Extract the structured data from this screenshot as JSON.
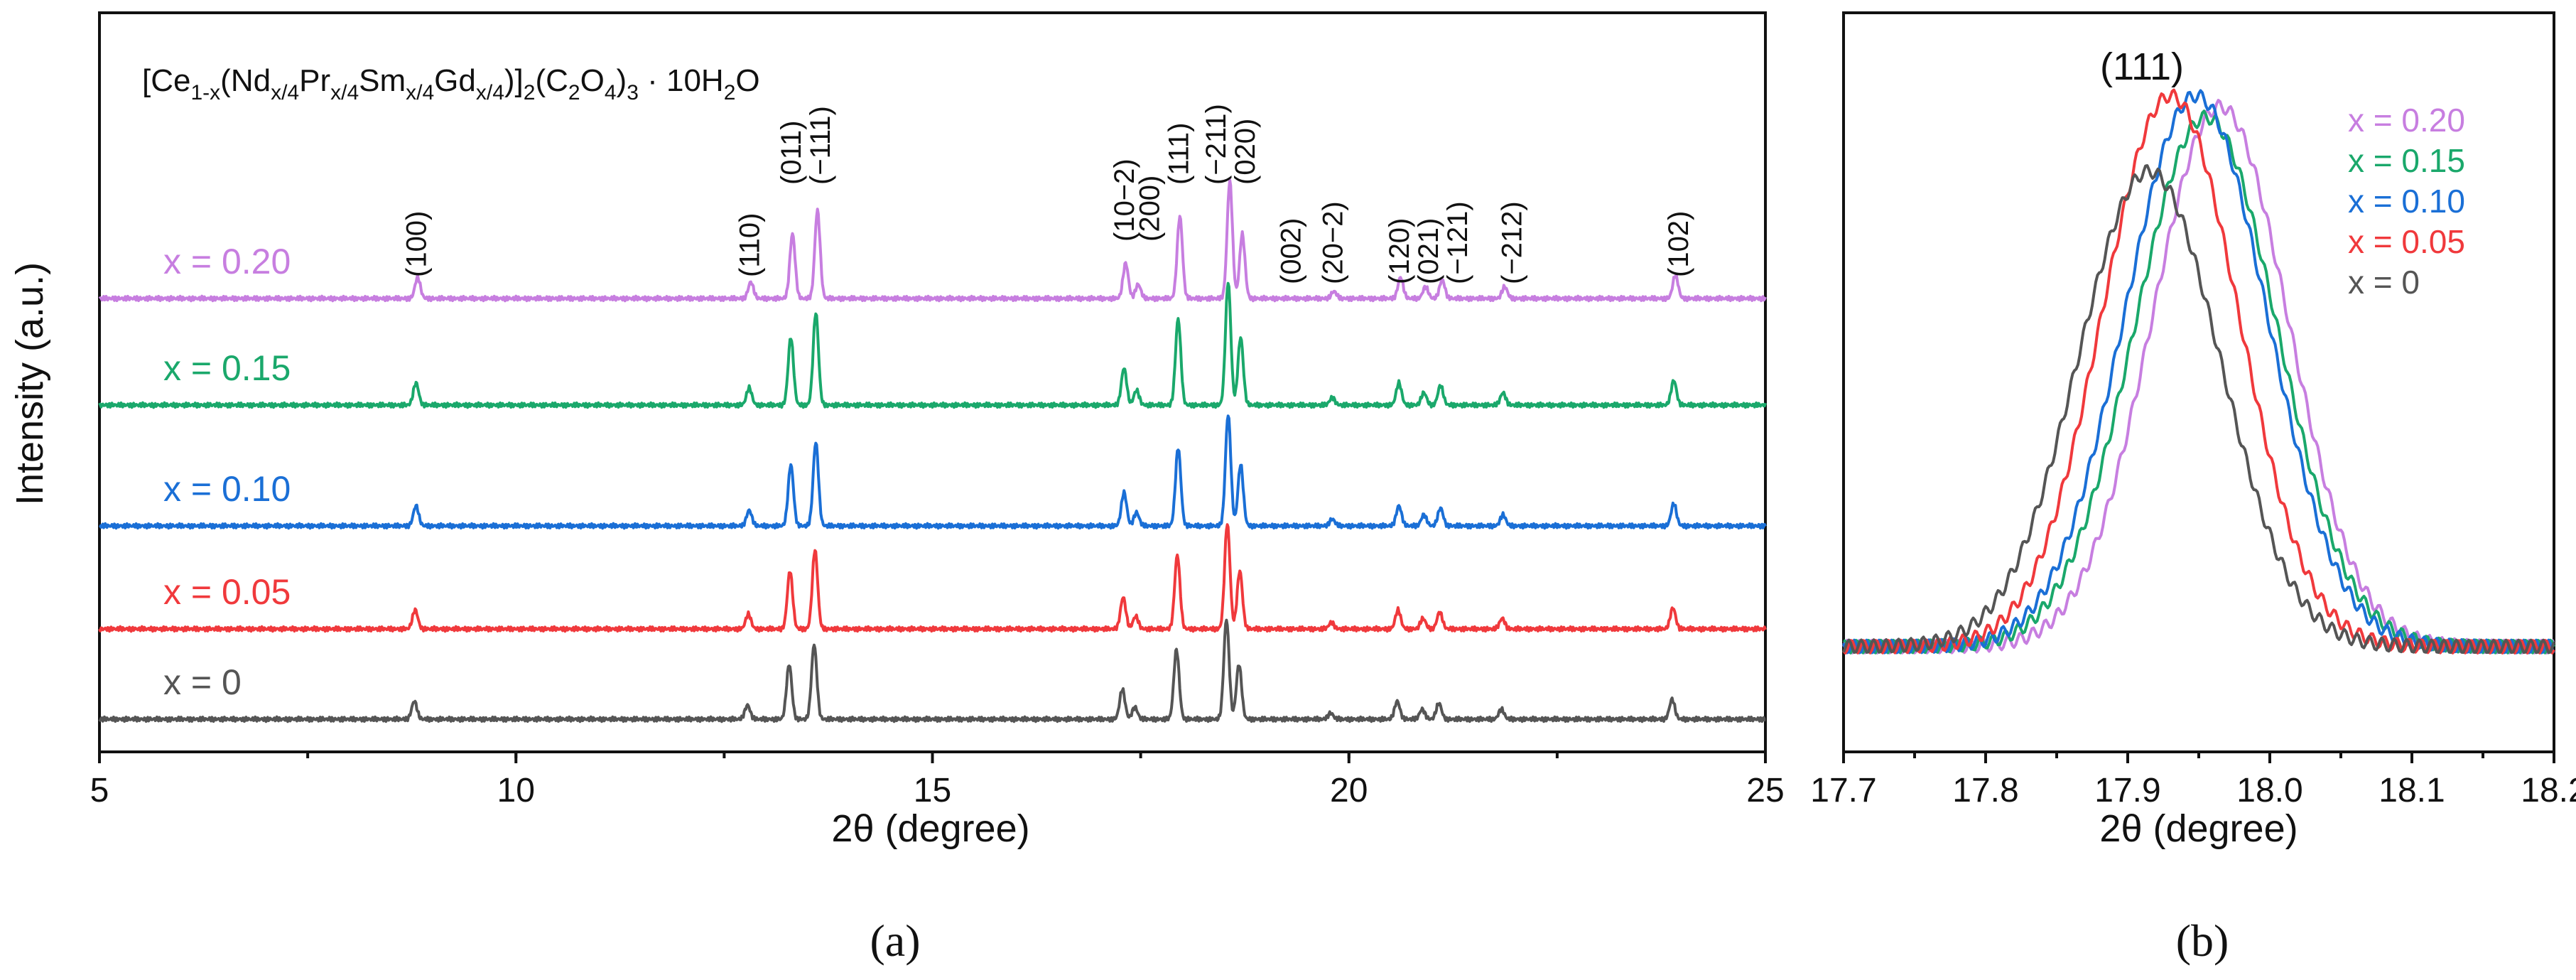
{
  "figure": {
    "panel_a_label": "(a)",
    "panel_b_label": "(b)",
    "formula": {
      "parts": [
        "[Ce",
        "1-x",
        "(Nd",
        "x/4",
        "Pr",
        "x/4",
        "Sm",
        "x/4",
        "Gd",
        "x/4",
        ")]",
        "2",
        "(C",
        "2",
        "O",
        "4",
        ")",
        "3",
        " · 10H",
        "2",
        "O"
      ]
    }
  },
  "chart_data": [
    {
      "type": "line",
      "title": "[Ce1-x(Ndx/4Prx/4Smx/4Gdx/4)]2(C2O4)3 · 10H2O",
      "xlabel": "2θ (degree)",
      "ylabel": "Intensity (a.u.)",
      "xlim": [
        5,
        25
      ],
      "xticks": [
        "5",
        "10",
        "15",
        "20",
        "25"
      ],
      "yticks": [],
      "peaks": [
        {
          "pos": 8.8,
          "h": 0.18
        },
        {
          "pos": 12.8,
          "h": 0.14
        },
        {
          "pos": 13.3,
          "h": 0.55
        },
        {
          "pos": 13.6,
          "h": 0.75
        },
        {
          "pos": 17.3,
          "h": 0.3
        },
        {
          "pos": 17.45,
          "h": 0.12
        },
        {
          "pos": 17.95,
          "h": 0.7
        },
        {
          "pos": 18.55,
          "h": 1.0
        },
        {
          "pos": 18.7,
          "h": 0.55
        },
        {
          "pos": 19.8,
          "h": 0.06
        },
        {
          "pos": 20.6,
          "h": 0.18
        },
        {
          "pos": 20.9,
          "h": 0.1
        },
        {
          "pos": 21.1,
          "h": 0.16
        },
        {
          "pos": 21.85,
          "h": 0.1
        },
        {
          "pos": 23.9,
          "h": 0.2
        }
      ],
      "reflections": [
        {
          "label": "(100)",
          "x": 8.8
        },
        {
          "label": "(110)",
          "x": 12.8
        },
        {
          "label": "(011)",
          "x": 13.3
        },
        {
          "label": "(−111)",
          "x": 13.65
        },
        {
          "label": "(10−2)",
          "x": 17.3
        },
        {
          "label": "(200)",
          "x": 17.6
        },
        {
          "label": "(111)",
          "x": 17.95
        },
        {
          "label": "(−211)",
          "x": 18.4
        },
        {
          "label": "(020)",
          "x": 18.75
        },
        {
          "label": "(002)",
          "x": 19.3
        },
        {
          "label": "(20−2)",
          "x": 19.8
        },
        {
          "label": "(120)",
          "x": 20.6
        },
        {
          "label": "(021)",
          "x": 20.95
        },
        {
          "label": "(−121)",
          "x": 21.3
        },
        {
          "label": "(−212)",
          "x": 21.95
        },
        {
          "label": "(102)",
          "x": 23.95
        }
      ],
      "series": [
        {
          "name": "x = 0.20",
          "color": "#c77ee0",
          "offset": 4,
          "shift": 0.02,
          "scale": 1.0
        },
        {
          "name": "x = 0.15",
          "color": "#1aa86b",
          "offset": 3,
          "shift": 0.0,
          "scale": 1.05
        },
        {
          "name": "x = 0.10",
          "color": "#1a6fd6",
          "offset": 2,
          "shift": 0.0,
          "scale": 0.95
        },
        {
          "name": "x = 0.05",
          "color": "#f0393c",
          "offset": 1,
          "shift": -0.01,
          "scale": 0.9
        },
        {
          "name": "x = 0",
          "color": "#555555",
          "offset": 0,
          "shift": -0.02,
          "scale": 0.85
        }
      ]
    },
    {
      "type": "line",
      "title": "(111)",
      "xlabel": "2θ (degree)",
      "ylabel": "",
      "xlim": [
        17.7,
        18.2
      ],
      "ylim": [
        0,
        1.25
      ],
      "xticks": [
        "17.7",
        "17.8",
        "17.9",
        "18.0",
        "18.1",
        "18.2"
      ],
      "legend_position": "top-right",
      "series": [
        {
          "name": "x = 0.20",
          "color": "#c77ee0",
          "center": 17.965,
          "sigma": 0.048,
          "height": 1.0
        },
        {
          "name": "x = 0.15",
          "color": "#1aa86b",
          "center": 17.955,
          "sigma": 0.05,
          "height": 0.98
        },
        {
          "name": "x = 0.10",
          "color": "#1a6fd6",
          "center": 17.948,
          "sigma": 0.05,
          "height": 1.02
        },
        {
          "name": "x = 0.05",
          "color": "#f0393c",
          "center": 17.93,
          "sigma": 0.048,
          "height": 1.02
        },
        {
          "name": "x = 0",
          "color": "#555555",
          "center": 17.915,
          "sigma": 0.05,
          "height": 0.88
        }
      ]
    }
  ]
}
